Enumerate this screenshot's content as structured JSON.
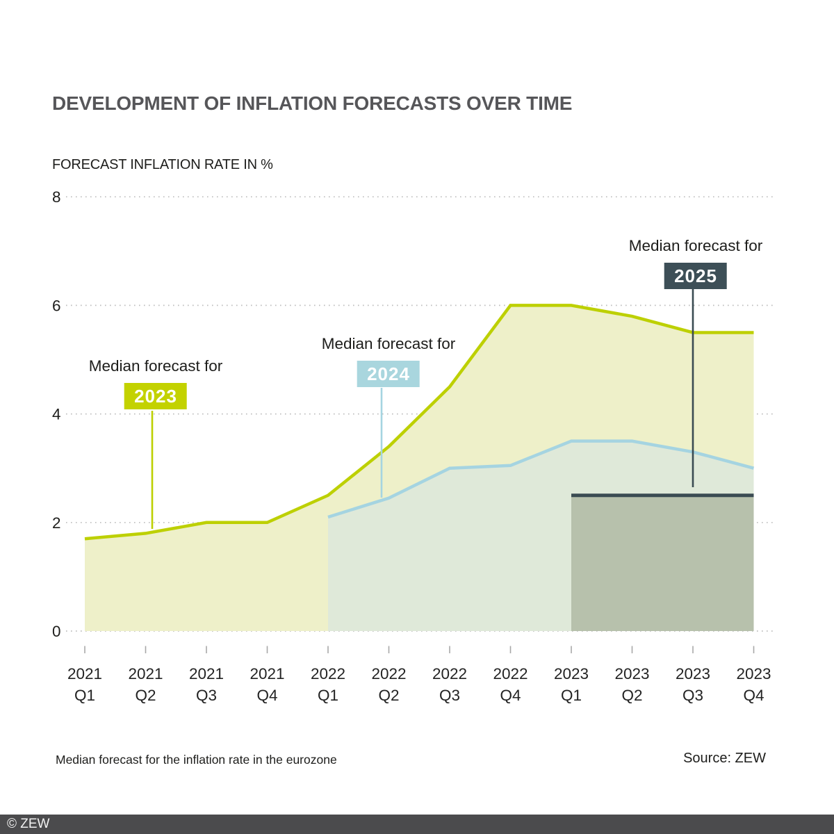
{
  "title": "DEVELOPMENT OF INFLATION FORECASTS OVER TIME",
  "subtitle": "FORECAST INFLATION RATE IN %",
  "caption": "Median forecast for the inflation rate in the eurozone",
  "source": "Source: ZEW",
  "footer": "© ZEW",
  "colors": {
    "title_text": "#565659",
    "body_text": "#1d1d1b",
    "grid": "#bdbdbd",
    "tick": "#a8a8a8",
    "footer_bg": "#4b4b4d",
    "series_2023_line": "#bdd002",
    "series_2023_fill": "#eef0c9",
    "series_2024_line": "#a5d4e1",
    "series_2024_fill": "#dfe9d9",
    "series_2025_line": "#3a4b52",
    "series_2025_fill": "#b7c1ac"
  },
  "chart_data": {
    "type": "area",
    "title": "DEVELOPMENT OF INFLATION FORECASTS OVER TIME",
    "ylabel": "FORECAST INFLATION RATE IN %",
    "xlabel": "",
    "ylim": [
      0,
      8
    ],
    "yticks": [
      0,
      2,
      4,
      6,
      8
    ],
    "grid": true,
    "legend_position": "labels-on-chart",
    "categories": [
      {
        "year": "2021",
        "quarter": "Q1"
      },
      {
        "year": "2021",
        "quarter": "Q2"
      },
      {
        "year": "2021",
        "quarter": "Q3"
      },
      {
        "year": "2021",
        "quarter": "Q4"
      },
      {
        "year": "2022",
        "quarter": "Q1"
      },
      {
        "year": "2022",
        "quarter": "Q2"
      },
      {
        "year": "2022",
        "quarter": "Q3"
      },
      {
        "year": "2022",
        "quarter": "Q4"
      },
      {
        "year": "2023",
        "quarter": "Q1"
      },
      {
        "year": "2023",
        "quarter": "Q2"
      },
      {
        "year": "2023",
        "quarter": "Q3"
      },
      {
        "year": "2023",
        "quarter": "Q4"
      }
    ],
    "series": [
      {
        "name": "Median forecast for 2023",
        "start": 0,
        "values": [
          1.7,
          1.8,
          2.0,
          2.0,
          2.5,
          3.4,
          4.5,
          6.0,
          6.0,
          5.8,
          5.5,
          5.5
        ],
        "line_color": "#bdd002",
        "fill_color": "#eef0c9"
      },
      {
        "name": "Median forecast for 2024",
        "start": 4,
        "values": [
          2.1,
          2.45,
          3.0,
          3.05,
          3.5,
          3.5,
          3.3,
          3.0
        ],
        "line_color": "#a5d4e1",
        "fill_color": "#dfe9d9"
      },
      {
        "name": "Median forecast for 2025",
        "start": 8,
        "values": [
          2.5,
          2.5,
          2.5,
          2.5
        ],
        "line_color": "#3a4b52",
        "fill_color": "#b7c1ac"
      }
    ]
  },
  "annotations": [
    {
      "label": "Median forecast for",
      "year": "2023",
      "box_bg": "#c3d200",
      "box_fg": "#ffffff"
    },
    {
      "label": "Median forecast for",
      "year": "2024",
      "box_bg": "#a9d6de",
      "box_fg": "#ffffff"
    },
    {
      "label": "Median forecast for",
      "year": "2025",
      "box_bg": "#3d4f57",
      "box_fg": "#ffffff"
    }
  ]
}
